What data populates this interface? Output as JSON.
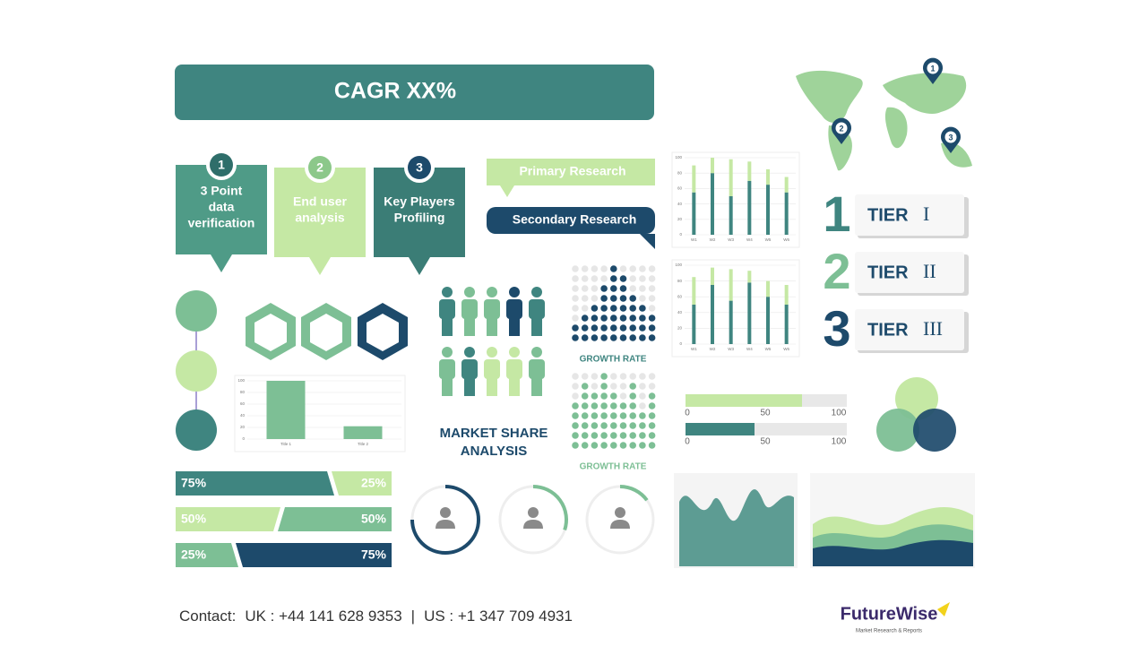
{
  "banner": {
    "title": "CAGR XX%"
  },
  "steps": [
    {
      "number": "1",
      "lines": [
        "3 Point",
        "data",
        "verification"
      ]
    },
    {
      "number": "2",
      "lines": [
        "End user",
        "analysis"
      ]
    },
    {
      "number": "3",
      "lines": [
        "Key Players",
        "Profiling"
      ]
    }
  ],
  "research": {
    "primary": "Primary Research",
    "secondary": "Secondary Research"
  },
  "market_share": {
    "lines": [
      "MARKET SHARE",
      "ANALYSIS"
    ]
  },
  "growth_labels": [
    "GROWTH RATE",
    "GROWTH RATE"
  ],
  "map_pins": [
    "1",
    "2",
    "3"
  ],
  "tiers": [
    {
      "numeral": "1",
      "label": "TIER",
      "roman": "I"
    },
    {
      "numeral": "2",
      "label": "TIER",
      "roman": "II"
    },
    {
      "numeral": "3",
      "label": "TIER",
      "roman": "III"
    }
  ],
  "split_bars": [
    {
      "left": "75%",
      "right": "25%"
    },
    {
      "left": "50%",
      "right": "50%"
    },
    {
      "left": "25%",
      "right": "75%"
    }
  ],
  "progress_scales": [
    {
      "ticks": [
        "0",
        "50",
        "100"
      ]
    },
    {
      "ticks": [
        "0",
        "50",
        "100"
      ]
    }
  ],
  "mini_charts": [
    {
      "type": "bar",
      "categories": [
        "W1",
        "W2",
        "W3",
        "W4",
        "W5",
        "W6"
      ],
      "ylim": [
        0,
        100
      ],
      "yticks": [
        0,
        20,
        40,
        60,
        80,
        100
      ],
      "series": [
        {
          "color": "#3f8580",
          "values": [
            55,
            80,
            50,
            70,
            65,
            55
          ]
        },
        {
          "color": "#c5e8a4",
          "values": [
            35,
            20,
            48,
            25,
            20,
            20
          ]
        }
      ]
    },
    {
      "type": "bar",
      "categories": [
        "W1",
        "W2",
        "W3",
        "W4",
        "W5",
        "W6"
      ],
      "ylim": [
        0,
        100
      ],
      "yticks": [
        0,
        20,
        40,
        60,
        80,
        100
      ],
      "series": [
        {
          "color": "#3f8580",
          "values": [
            50,
            75,
            55,
            78,
            60,
            50
          ]
        },
        {
          "color": "#c5e8a4",
          "values": [
            35,
            22,
            40,
            15,
            20,
            25
          ]
        }
      ]
    },
    {
      "type": "bar",
      "categories": [
        "Title 1",
        "Title 2"
      ],
      "ylim": [
        0,
        100
      ],
      "yticks": [
        0,
        20,
        40,
        60,
        80,
        100
      ],
      "series": [
        {
          "color": "#7dbf95",
          "values": [
            100,
            22
          ]
        }
      ]
    }
  ],
  "contact": {
    "label": "Contact:",
    "uk": "UK : +44 141 628 9353",
    "sep": "|",
    "us": "US : +1 347 709 4931"
  },
  "logo": {
    "name": "FutureWise",
    "tagline": "Market Research & Reports"
  }
}
